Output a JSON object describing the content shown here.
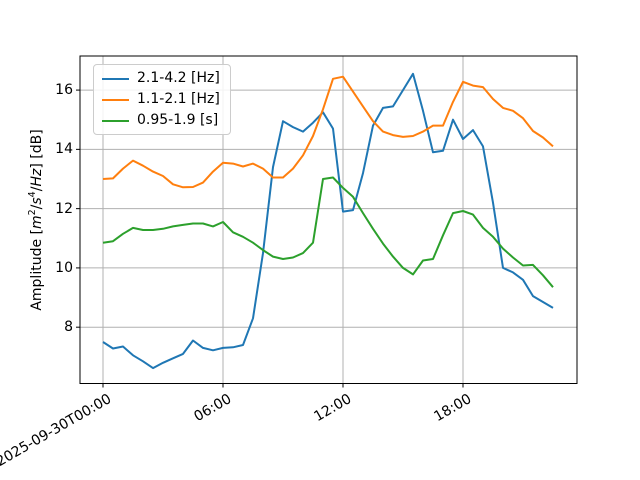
{
  "figure": {
    "ylabel": {
      "prefix": "Amplitude [",
      "m": "m",
      "m_exp": "2",
      "slash1": "/",
      "s": "s",
      "s_exp": "4",
      "slash2": "/",
      "hz": "Hz",
      "suffix": "] [dB]"
    }
  },
  "colors": {
    "background": "#ffffff",
    "grid": "#b0b0b0",
    "spine": "#000000",
    "tick": "#000000",
    "legend_border": "#cccccc"
  },
  "chart_data": {
    "type": "line",
    "title": "",
    "xlabel": "",
    "ylabel": "Amplitude [m^2/s^4/Hz] [dB]",
    "grid": true,
    "legend_position": "upper left",
    "line_width": 2,
    "xlim_hours": [
      -1.15,
      23.7
    ],
    "ylim": [
      6.1,
      17.15
    ],
    "yticks": [
      8,
      10,
      12,
      14,
      16
    ],
    "xticks": [
      {
        "hour": 0,
        "label": "2025-09-30T00:00"
      },
      {
        "hour": 6,
        "label": "06:00"
      },
      {
        "hour": 12,
        "label": "12:00"
      },
      {
        "hour": 18,
        "label": "18:00"
      }
    ],
    "x_hours": [
      0,
      0.5,
      1,
      1.5,
      2,
      2.5,
      3,
      3.5,
      4,
      4.5,
      5,
      5.5,
      6,
      6.5,
      7,
      7.5,
      8,
      8.5,
      9,
      9.5,
      10,
      10.5,
      11,
      11.5,
      12,
      12.5,
      13,
      13.5,
      14,
      14.5,
      15,
      15.5,
      16,
      16.5,
      17,
      17.5,
      18,
      18.5,
      19,
      19.5,
      20,
      20.5,
      21,
      21.5,
      22,
      22.5
    ],
    "series": [
      {
        "name": "2.1-4.2 [Hz]",
        "color": "#1f77b4",
        "values": [
          7.5,
          7.28,
          7.35,
          7.05,
          6.85,
          6.62,
          6.8,
          6.95,
          7.1,
          7.55,
          7.3,
          7.22,
          7.3,
          7.32,
          7.4,
          8.3,
          10.5,
          13.4,
          14.95,
          14.75,
          14.6,
          14.9,
          15.25,
          14.7,
          11.9,
          11.95,
          13.2,
          14.8,
          15.4,
          15.45,
          16.0,
          16.55,
          15.3,
          13.9,
          13.95,
          15.0,
          14.35,
          14.65,
          14.1,
          12.2,
          10.0,
          9.85,
          9.6,
          9.05,
          8.85,
          8.65
        ]
      },
      {
        "name": "1.1-2.1 [Hz]",
        "color": "#ff7f0e",
        "values": [
          13.0,
          13.02,
          13.35,
          13.62,
          13.45,
          13.25,
          13.1,
          12.82,
          12.72,
          12.73,
          12.88,
          13.25,
          13.55,
          13.52,
          13.42,
          13.52,
          13.35,
          13.05,
          13.05,
          13.35,
          13.8,
          14.45,
          15.35,
          16.38,
          16.45,
          15.95,
          15.45,
          14.95,
          14.6,
          14.48,
          14.42,
          14.45,
          14.6,
          14.8,
          14.8,
          15.6,
          16.28,
          16.15,
          16.1,
          15.7,
          15.4,
          15.3,
          15.05,
          14.62,
          14.4,
          14.1
        ]
      },
      {
        "name": "0.95-1.9 [s]",
        "color": "#2ca02c",
        "values": [
          10.85,
          10.9,
          11.15,
          11.35,
          11.28,
          11.28,
          11.32,
          11.4,
          11.45,
          11.5,
          11.5,
          11.4,
          11.55,
          11.2,
          11.05,
          10.85,
          10.6,
          10.38,
          10.3,
          10.35,
          10.5,
          10.85,
          13.0,
          13.05,
          12.7,
          12.4,
          11.85,
          11.32,
          10.82,
          10.38,
          10.0,
          9.78,
          10.25,
          10.3,
          11.1,
          11.85,
          11.92,
          11.8,
          11.35,
          11.05,
          10.65,
          10.35,
          10.08,
          10.1,
          9.75,
          9.35
        ]
      }
    ]
  }
}
